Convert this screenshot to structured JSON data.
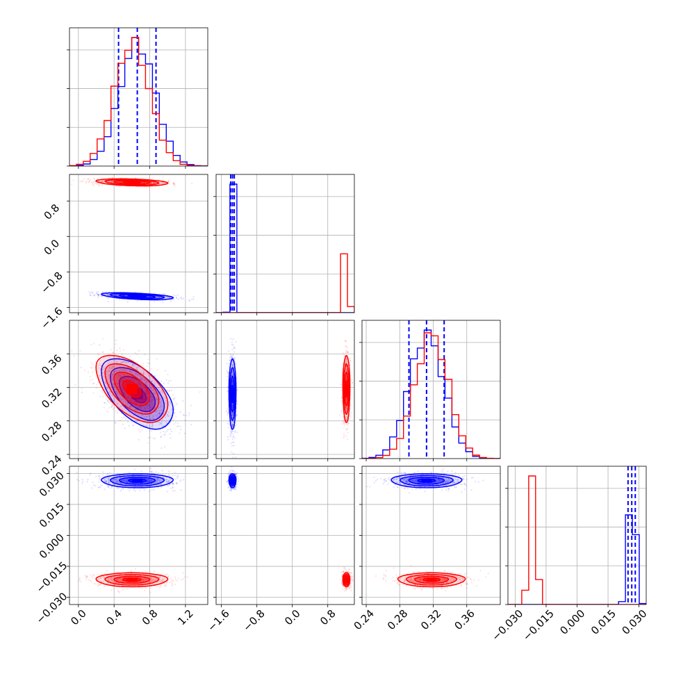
{
  "chart_data": {
    "type": "scatter",
    "title": "",
    "colors": {
      "blue": "#0000ff",
      "red": "#ff0000",
      "grid": "#b0b0b0"
    },
    "grid": true,
    "variables": [
      {
        "index": 0,
        "ticks": [
          0.0,
          0.4,
          0.8,
          1.2
        ],
        "tick_labels": [
          "0.0",
          "0.4",
          "0.8",
          "1.2"
        ],
        "range": [
          -0.1,
          1.45
        ]
      },
      {
        "index": 1,
        "ticks": [
          -1.6,
          -0.8,
          0.0,
          0.8
        ],
        "tick_labels": [
          "−1.6",
          "−0.8",
          "0.0",
          "0.8"
        ],
        "range": [
          -1.72,
          1.4
        ]
      },
      {
        "index": 2,
        "ticks": [
          0.24,
          0.28,
          0.32,
          0.36
        ],
        "tick_labels": [
          "0.24",
          "0.28",
          "0.32",
          "0.36"
        ],
        "range": [
          0.235,
          0.4
        ]
      },
      {
        "index": 3,
        "ticks": [
          -0.03,
          -0.015,
          0.0,
          0.015,
          0.03
        ],
        "tick_labels": [
          "−0.030",
          "−0.015",
          "0.000",
          "0.015",
          "0.030"
        ],
        "range": [
          -0.0335,
          0.0335
        ]
      }
    ],
    "series": [
      {
        "color": "blue",
        "means": [
          0.66,
          -1.35,
          0.312,
          0.0265
        ],
        "sds": [
          0.2,
          0.04,
          0.021,
          0.0017
        ],
        "corr": {
          "0-1": -0.5,
          "0-2": -0.55,
          "0-3": 0.0,
          "1-2": 0.0,
          "1-3": 0.0,
          "2-3": 0.0
        },
        "quantiles_1d": [
          [
            0.45,
            0.66,
            0.87
          ],
          [
            -1.39,
            -1.35,
            -1.31
          ],
          [
            0.291,
            0.312,
            0.333
          ],
          [
            0.0247,
            0.0265,
            0.0282
          ]
        ]
      },
      {
        "color": "red",
        "means": [
          0.6,
          1.22,
          0.318,
          -0.0215
        ],
        "sds": [
          0.2,
          0.04,
          0.02,
          0.0017
        ],
        "corr": {
          "0-1": -0.3,
          "0-2": -0.55,
          "0-3": 0.0,
          "1-2": 0.0,
          "1-3": 0.0,
          "2-3": 0.0
        },
        "quantiles_1d": []
      }
    ]
  }
}
